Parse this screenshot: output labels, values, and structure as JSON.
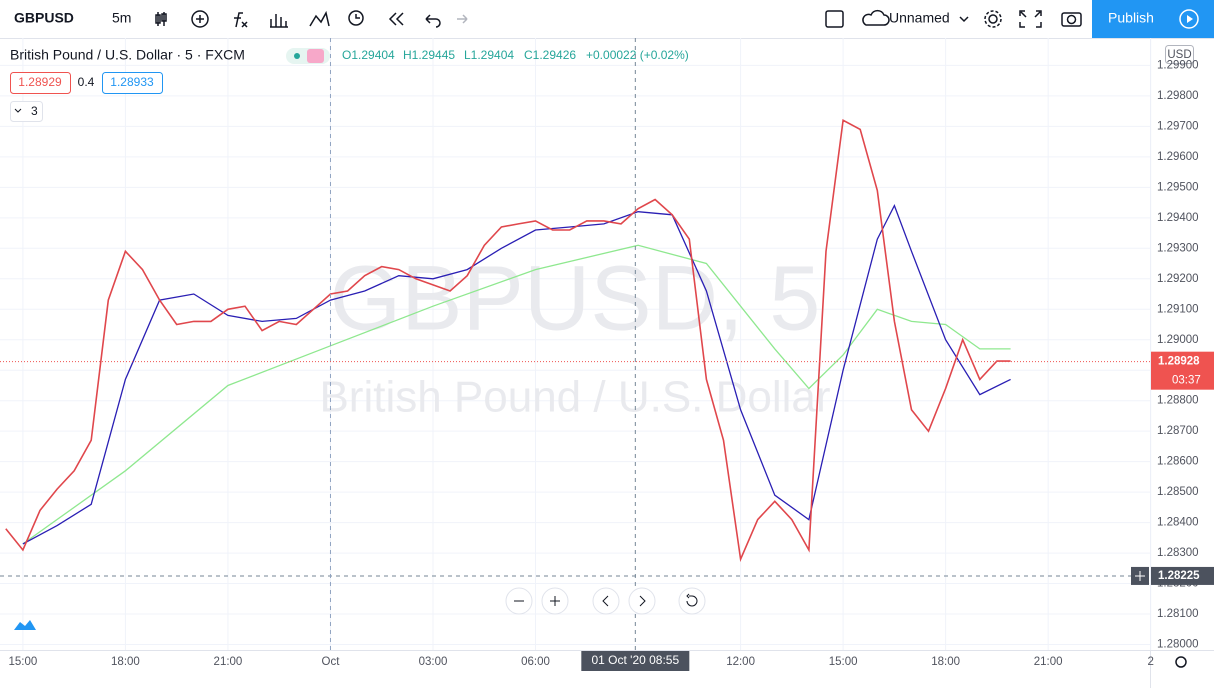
{
  "toolbar": {
    "symbol": "GBPUSD",
    "interval": "5m",
    "layout": "Unnamed",
    "publish": "Publish"
  },
  "legend": {
    "title": "British Pound / U.S. Dollar · 5 · FXCM",
    "open": "O1.29404",
    "high": "H1.29445",
    "low": "L1.29404",
    "close": "C1.29426",
    "change": "+0.00022 (+0.02%)",
    "bid": "1.28929",
    "spread": "0.4",
    "ask": "1.28933",
    "indicators": "3"
  },
  "currency": "USD",
  "watermark": {
    "symbol": "GBPUSD, 5",
    "description": "British Pound / U.S. Dollar"
  },
  "chart_data": {
    "type": "line",
    "xlim": [
      -0.67,
      32.98
    ],
    "ylim": [
      1.27982,
      1.2999
    ],
    "grid": true,
    "xticks": [
      {
        "value": 0,
        "label": "15:00"
      },
      {
        "value": 3,
        "label": "18:00"
      },
      {
        "value": 6,
        "label": "21:00"
      },
      {
        "value": 9,
        "label": "Oct"
      },
      {
        "value": 12,
        "label": "03:00"
      },
      {
        "value": 15,
        "label": "06:00"
      },
      {
        "value": 21,
        "label": "12:00"
      },
      {
        "value": 24,
        "label": "15:00"
      },
      {
        "value": 27,
        "label": "18:00"
      },
      {
        "value": 30,
        "label": "21:00"
      },
      {
        "value": 33,
        "label": "2"
      }
    ],
    "yticks": [
      {
        "value": 1.28,
        "label": "1.28000"
      },
      {
        "value": 1.281,
        "label": "1.28100"
      },
      {
        "value": 1.282,
        "label": "1.28200"
      },
      {
        "value": 1.283,
        "label": "1.28300"
      },
      {
        "value": 1.284,
        "label": "1.28400"
      },
      {
        "value": 1.285,
        "label": "1.28500"
      },
      {
        "value": 1.286,
        "label": "1.28600"
      },
      {
        "value": 1.287,
        "label": "1.28700"
      },
      {
        "value": 1.288,
        "label": "1.28800"
      },
      {
        "value": 1.289,
        "label": "1.28900"
      },
      {
        "value": 1.29,
        "label": "1.29000"
      },
      {
        "value": 1.291,
        "label": "1.29100"
      },
      {
        "value": 1.292,
        "label": "1.29200"
      },
      {
        "value": 1.293,
        "label": "1.29300"
      },
      {
        "value": 1.294,
        "label": "1.29400"
      },
      {
        "value": 1.295,
        "label": "1.29500"
      },
      {
        "value": 1.296,
        "label": "1.29600"
      },
      {
        "value": 1.297,
        "label": "1.29700"
      },
      {
        "value": 1.298,
        "label": "1.29800"
      },
      {
        "value": 1.299,
        "label": "1.29900"
      }
    ],
    "series": [
      {
        "color": "#e0474c",
        "x": [
          -0.5,
          0,
          0.5,
          1,
          1.5,
          2,
          2.5,
          3,
          3.5,
          4,
          4.5,
          5,
          5.5,
          6,
          6.5,
          7,
          7.5,
          8,
          8.5,
          9,
          9.5,
          10,
          10.5,
          11,
          11.5,
          12,
          12.5,
          13,
          13.5,
          14,
          14.5,
          15,
          15.5,
          16,
          16.5,
          17,
          17.5,
          18,
          18.5,
          19,
          19.5,
          20,
          20.5,
          21,
          21.5,
          22,
          22.5,
          23,
          23.5,
          24,
          24.5,
          25,
          25.5,
          26,
          26.5,
          27,
          27.5,
          28,
          28.5,
          28.9
        ],
        "values": [
          1.2838,
          1.2831,
          1.2844,
          1.2851,
          1.2857,
          1.2867,
          1.2913,
          1.2929,
          1.2923,
          1.2913,
          1.2905,
          1.2906,
          1.2906,
          1.291,
          1.2911,
          1.2903,
          1.2906,
          1.2905,
          1.291,
          1.2915,
          1.2916,
          1.2921,
          1.2924,
          1.2923,
          1.292,
          1.2918,
          1.2916,
          1.2921,
          1.2931,
          1.2937,
          1.2938,
          1.2939,
          1.2936,
          1.2936,
          1.2939,
          1.2939,
          1.2938,
          1.2943,
          1.2946,
          1.2941,
          1.2933,
          1.2887,
          1.2867,
          1.2828,
          1.2841,
          1.2847,
          1.2841,
          1.2831,
          1.2929,
          1.2972,
          1.2969,
          1.2949,
          1.2906,
          1.2877,
          1.287,
          1.2884,
          1.29,
          1.2887,
          1.2893,
          1.2893
        ]
      },
      {
        "color": "#2a1fb4",
        "x": [
          0,
          1,
          2,
          3,
          4,
          5,
          6,
          7,
          8,
          9,
          10,
          11,
          12,
          13,
          14,
          15,
          16,
          17,
          18,
          19,
          20,
          21,
          22,
          23,
          24,
          25,
          25.5,
          26,
          27,
          28,
          28.9
        ],
        "values": [
          1.2833,
          1.2839,
          1.2846,
          1.2887,
          1.2913,
          1.2915,
          1.2908,
          1.2906,
          1.2907,
          1.2913,
          1.2916,
          1.2921,
          1.292,
          1.2923,
          1.293,
          1.2936,
          1.2937,
          1.2938,
          1.2942,
          1.2941,
          1.2916,
          1.2877,
          1.2849,
          1.2841,
          1.289,
          1.2933,
          1.2944,
          1.2929,
          1.29,
          1.2882,
          1.2887
        ]
      },
      {
        "color": "#8fe88f",
        "x": [
          0,
          3,
          6,
          9,
          12,
          15,
          18,
          20,
          22,
          23,
          24,
          25,
          26,
          27,
          28,
          28.9
        ],
        "values": [
          1.2833,
          1.2857,
          1.2885,
          1.2898,
          1.2911,
          1.2923,
          1.2931,
          1.2925,
          1.2897,
          1.2884,
          1.2895,
          1.291,
          1.2906,
          1.2905,
          1.2897,
          1.2897
        ]
      }
    ],
    "last_price": 1.28928,
    "countdown": "03:37",
    "crosshair": {
      "x": 17.92,
      "label": "01 Oct '20  08:55",
      "price": 1.28225
    }
  }
}
